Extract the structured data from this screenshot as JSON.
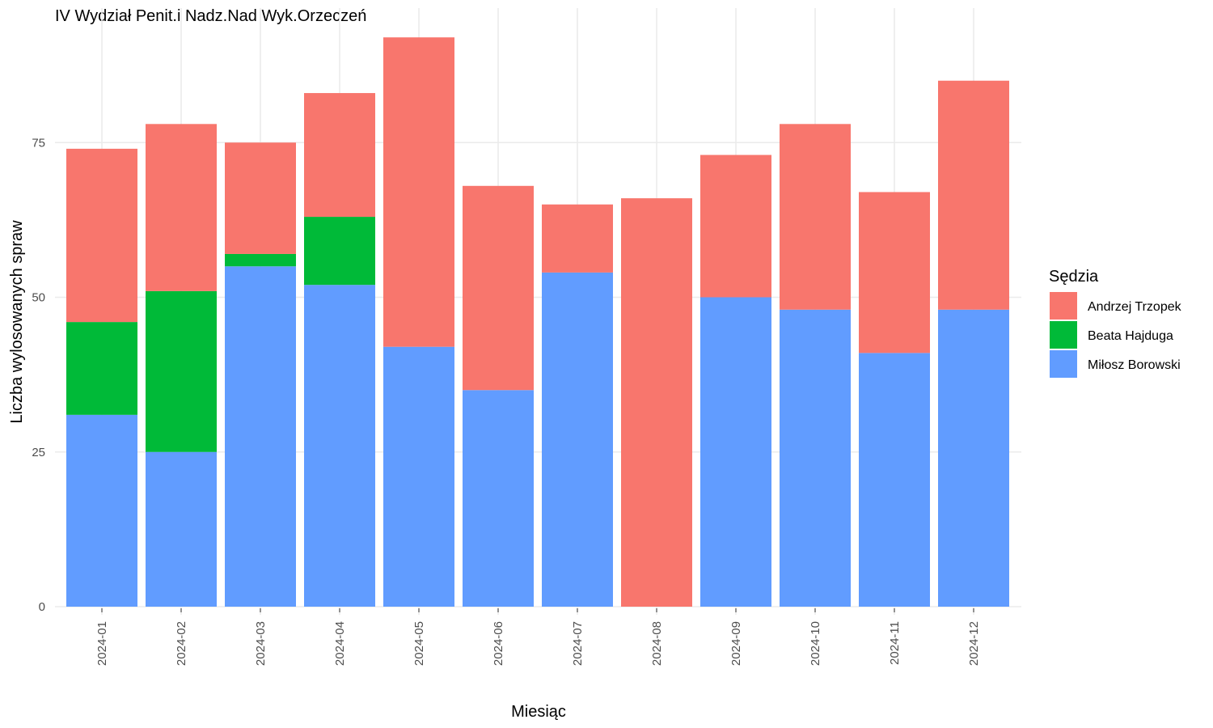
{
  "chart_data": {
    "type": "bar",
    "stacked": true,
    "title": "IV Wydział Penit.i Nadz.Nad Wyk.Orzeczeń",
    "xlabel": "Miesiąc",
    "ylabel": "Liczba wylosowanych spraw",
    "ylim": [
      0,
      92
    ],
    "yticks": [
      0,
      25,
      50,
      75
    ],
    "grid": true,
    "legend": {
      "title": "Sędzia",
      "position": "right"
    },
    "categories": [
      "2024-01",
      "2024-02",
      "2024-03",
      "2024-04",
      "2024-05",
      "2024-06",
      "2024-07",
      "2024-08",
      "2024-09",
      "2024-10",
      "2024-11",
      "2024-12"
    ],
    "series": [
      {
        "name": "Miłosz Borowski",
        "color": "#619CFF",
        "values": [
          31,
          25,
          55,
          52,
          42,
          35,
          54,
          0,
          50,
          48,
          41,
          48
        ]
      },
      {
        "name": "Beata Hajduga",
        "color": "#00BA38",
        "values": [
          15,
          26,
          2,
          11,
          0,
          0,
          0,
          0,
          0,
          0,
          0,
          0
        ]
      },
      {
        "name": "Andrzej Trzopek",
        "color": "#F8766D",
        "values": [
          28,
          27,
          18,
          20,
          50,
          33,
          11,
          66,
          23,
          30,
          26,
          37
        ]
      }
    ],
    "legend_order": [
      "Andrzej Trzopek",
      "Beata Hajduga",
      "Miłosz Borowski"
    ]
  }
}
